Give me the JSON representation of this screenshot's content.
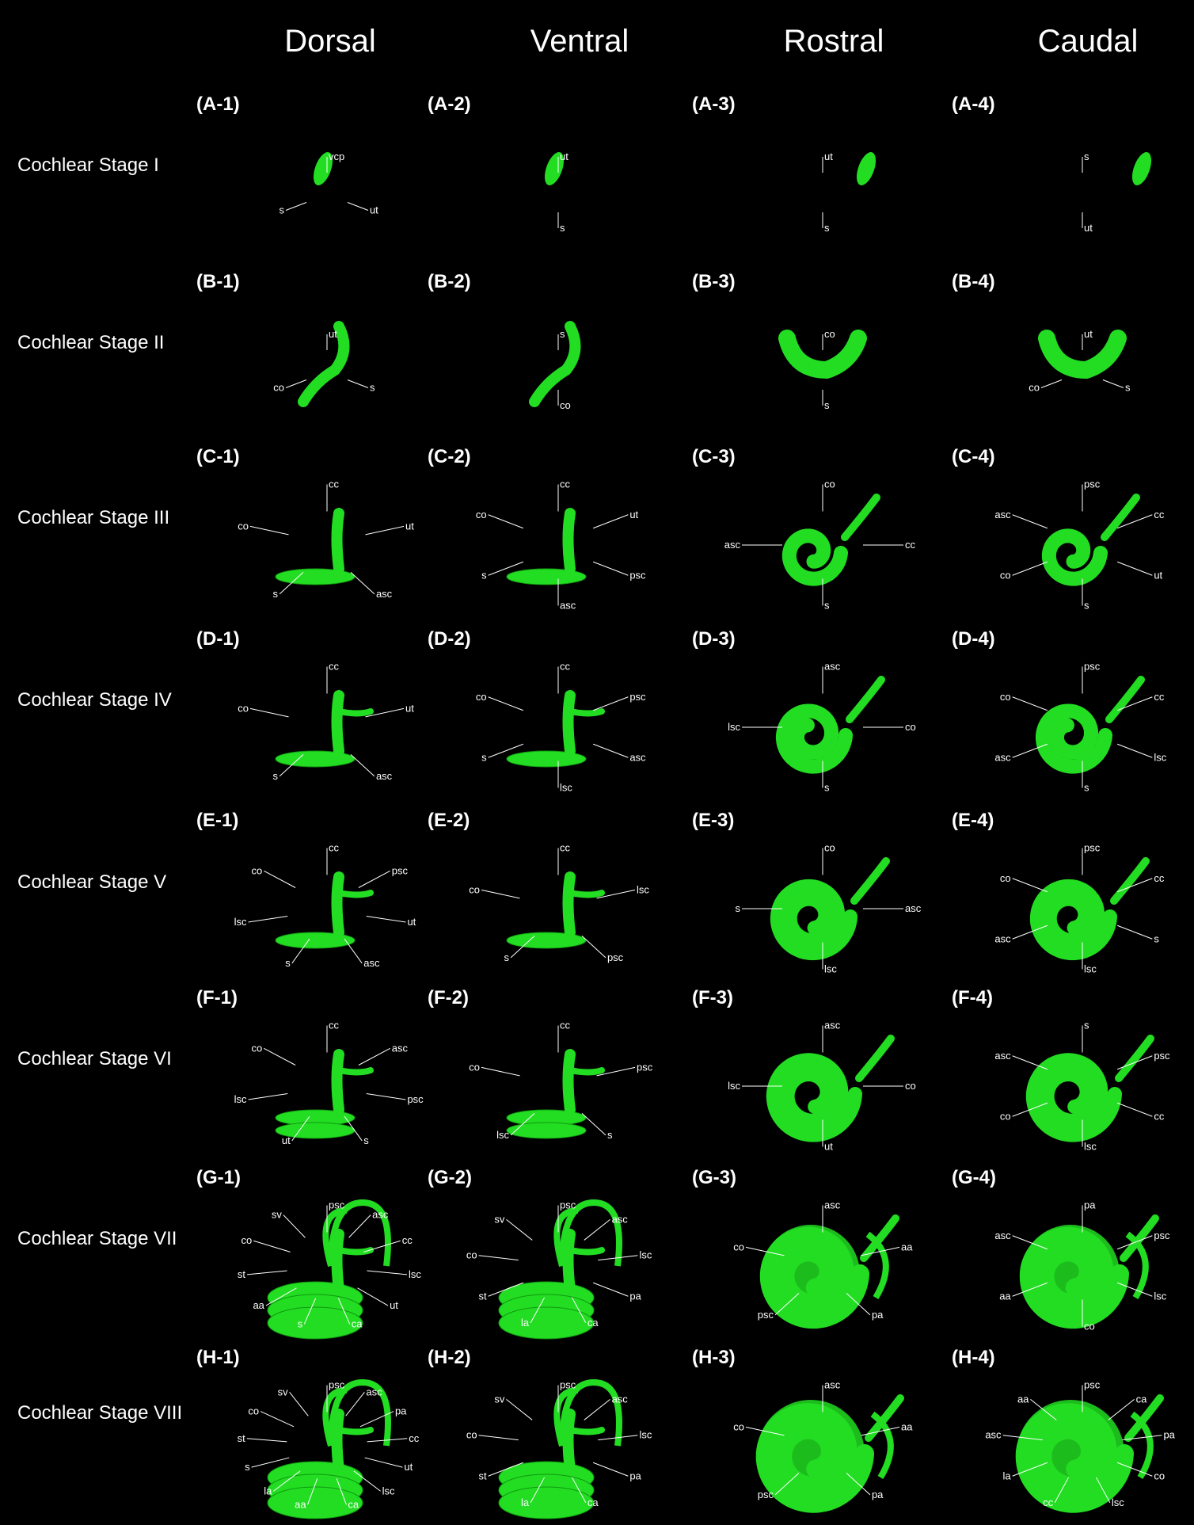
{
  "columns": [
    "Dorsal",
    "Ventral",
    "Rostral",
    "Caudal"
  ],
  "colors": {
    "background": "#000000",
    "tissue": "#22dd22",
    "tissue_dark": "#119911",
    "text": "#ffffff"
  },
  "rows": [
    {
      "label": "Cochlear Stage I",
      "stage": 1,
      "panels": [
        {
          "id": "(A-1)",
          "annotations": [
            "vcp",
            "ut",
            "s"
          ]
        },
        {
          "id": "(A-2)",
          "annotations": [
            "ut",
            "s"
          ]
        },
        {
          "id": "(A-3)",
          "annotations": [
            "ut",
            "s"
          ]
        },
        {
          "id": "(A-4)",
          "annotations": [
            "s",
            "ut"
          ]
        }
      ]
    },
    {
      "label": "Cochlear Stage II",
      "stage": 2,
      "panels": [
        {
          "id": "(B-1)",
          "annotations": [
            "ut",
            "s",
            "co"
          ]
        },
        {
          "id": "(B-2)",
          "annotations": [
            "s",
            "co"
          ]
        },
        {
          "id": "(B-3)",
          "annotations": [
            "co",
            "s"
          ]
        },
        {
          "id": "(B-4)",
          "annotations": [
            "ut",
            "s",
            "co"
          ]
        }
      ]
    },
    {
      "label": "Cochlear Stage III",
      "stage": 3,
      "panels": [
        {
          "id": "(C-1)",
          "annotations": [
            "cc",
            "ut",
            "asc",
            "s",
            "co"
          ]
        },
        {
          "id": "(C-2)",
          "annotations": [
            "cc",
            "ut",
            "psc",
            "asc",
            "s",
            "co"
          ]
        },
        {
          "id": "(C-3)",
          "annotations": [
            "co",
            "cc",
            "s",
            "asc"
          ]
        },
        {
          "id": "(C-4)",
          "annotations": [
            "psc",
            "cc",
            "ut",
            "s",
            "co",
            "asc"
          ]
        }
      ]
    },
    {
      "label": "Cochlear Stage IV",
      "stage": 4,
      "panels": [
        {
          "id": "(D-1)",
          "annotations": [
            "cc",
            "ut",
            "asc",
            "s",
            "co"
          ]
        },
        {
          "id": "(D-2)",
          "annotations": [
            "cc",
            "psc",
            "asc",
            "lsc",
            "s",
            "co"
          ]
        },
        {
          "id": "(D-3)",
          "annotations": [
            "asc",
            "co",
            "s",
            "lsc"
          ]
        },
        {
          "id": "(D-4)",
          "annotations": [
            "psc",
            "cc",
            "lsc",
            "s",
            "asc",
            "co"
          ]
        }
      ]
    },
    {
      "label": "Cochlear Stage V",
      "stage": 5,
      "panels": [
        {
          "id": "(E-1)",
          "annotations": [
            "cc",
            "psc",
            "ut",
            "asc",
            "s",
            "lsc",
            "co"
          ]
        },
        {
          "id": "(E-2)",
          "annotations": [
            "cc",
            "lsc",
            "psc",
            "s",
            "co"
          ]
        },
        {
          "id": "(E-3)",
          "annotations": [
            "co",
            "asc",
            "lsc",
            "s"
          ]
        },
        {
          "id": "(E-4)",
          "annotations": [
            "psc",
            "cc",
            "s",
            "lsc",
            "asc",
            "co"
          ]
        }
      ]
    },
    {
      "label": "Cochlear Stage VI",
      "stage": 6,
      "panels": [
        {
          "id": "(F-1)",
          "annotations": [
            "cc",
            "asc",
            "psc",
            "s",
            "ut",
            "lsc",
            "co"
          ]
        },
        {
          "id": "(F-2)",
          "annotations": [
            "cc",
            "psc",
            "s",
            "lsc",
            "co"
          ]
        },
        {
          "id": "(F-3)",
          "annotations": [
            "asc",
            "co",
            "ut",
            "lsc"
          ]
        },
        {
          "id": "(F-4)",
          "annotations": [
            "s",
            "psc",
            "cc",
            "lsc",
            "co",
            "asc"
          ]
        }
      ]
    },
    {
      "label": "Cochlear Stage VII",
      "stage": 7,
      "panels": [
        {
          "id": "(G-1)",
          "annotations": [
            "psc",
            "asc",
            "cc",
            "lsc",
            "ut",
            "ca",
            "s",
            "aa",
            "st",
            "co",
            "sv"
          ]
        },
        {
          "id": "(G-2)",
          "annotations": [
            "psc",
            "asc",
            "lsc",
            "pa",
            "ca",
            "la",
            "st",
            "co",
            "sv"
          ]
        },
        {
          "id": "(G-3)",
          "annotations": [
            "asc",
            "aa",
            "pa",
            "psc",
            "co"
          ]
        },
        {
          "id": "(G-4)",
          "annotations": [
            "pa",
            "psc",
            "lsc",
            "co",
            "aa",
            "asc"
          ]
        }
      ]
    },
    {
      "label": "Cochlear Stage VIII",
      "stage": 8,
      "panels": [
        {
          "id": "(H-1)",
          "annotations": [
            "psc",
            "asc",
            "pa",
            "cc",
            "ut",
            "lsc",
            "ca",
            "aa",
            "la",
            "s",
            "st",
            "co",
            "sv"
          ]
        },
        {
          "id": "(H-2)",
          "annotations": [
            "psc",
            "asc",
            "lsc",
            "pa",
            "ca",
            "la",
            "st",
            "co",
            "sv"
          ]
        },
        {
          "id": "(H-3)",
          "annotations": [
            "asc",
            "aa",
            "pa",
            "psc",
            "co"
          ]
        },
        {
          "id": "(H-4)",
          "annotations": [
            "psc",
            "ca",
            "pa",
            "co",
            "lsc",
            "cc",
            "la",
            "asc",
            "aa"
          ]
        }
      ]
    }
  ]
}
